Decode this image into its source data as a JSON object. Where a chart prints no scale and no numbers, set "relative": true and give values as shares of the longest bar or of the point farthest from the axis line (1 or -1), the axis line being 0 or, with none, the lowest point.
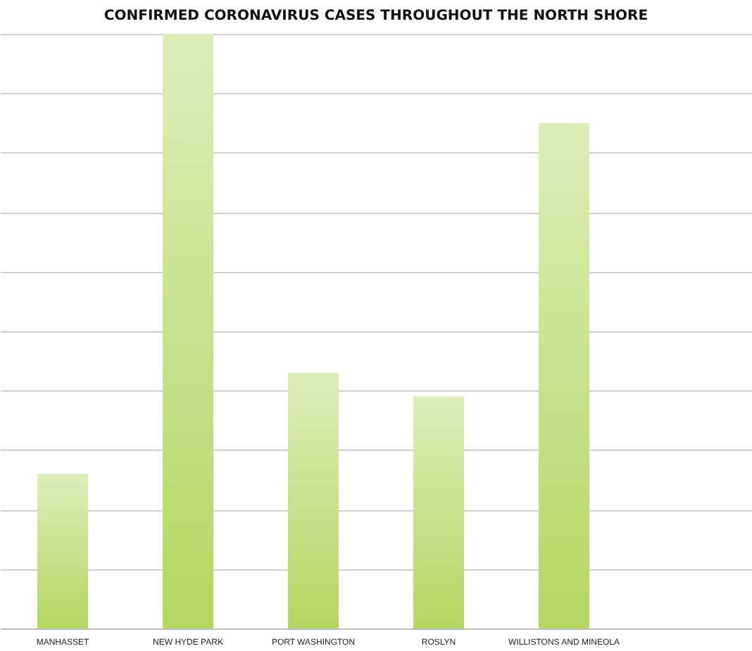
{
  "chart_data": {
    "type": "bar",
    "title": "CONFIRMED CORONAVIRUS CASES THROUGHOUT THE NORTH SHORE",
    "categories": [
      "MANHASSET",
      "NEW HYDE PARK",
      "PORT WASHINGTON",
      "ROSLYN",
      "WILLISTONS AND MINEOLA",
      null
    ],
    "values": [
      0.26,
      1,
      0.43,
      0.39,
      0.85,
      null
    ],
    "color": "#b4d661",
    "relative": true,
    "grid": "y"
  }
}
